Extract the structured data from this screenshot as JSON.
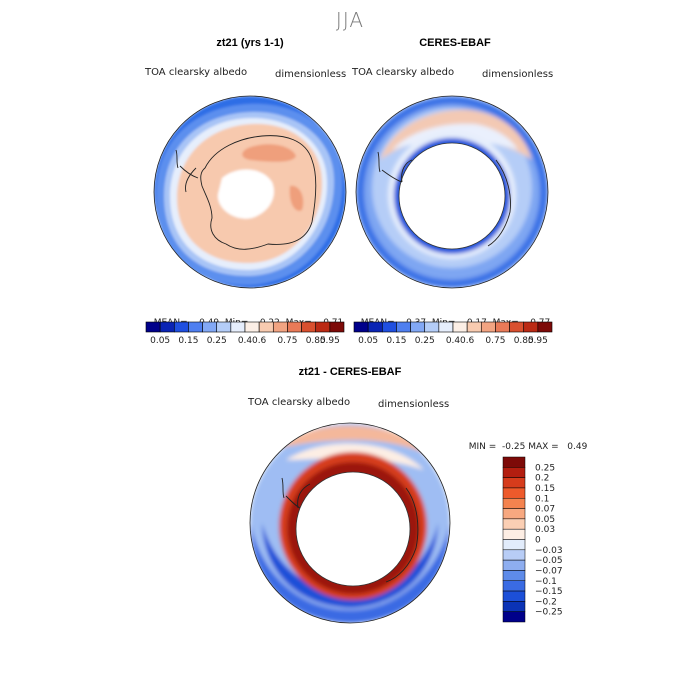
{
  "figure": {
    "season": "JJA"
  },
  "panels": [
    {
      "title": "zt21 (yrs 1-1)",
      "variable": "TOA clearsky albedo",
      "units": "dimensionless",
      "stats": {
        "mean_label": "MEAN=",
        "mean": "0.49",
        "min_label": "Min=",
        "min": "0.22",
        "max_label": "Max=",
        "max": "0.71"
      }
    },
    {
      "title": "CERES-EBAF",
      "variable": "TOA clearsky albedo",
      "units": "dimensionless",
      "stats": {
        "mean_label": "MEAN=",
        "mean": "0.37",
        "min_label": "Min=",
        "min": "0.17",
        "max_label": "Max=",
        "max": "0.77"
      }
    },
    {
      "title": "zt21 - CERES-EBAF",
      "variable": "TOA clearsky albedo",
      "units": "dimensionless",
      "stats": {
        "min_label": "MIN =",
        "min": "-0.25",
        "max_label": "MAX =",
        "max": "0.49"
      }
    }
  ],
  "colorbar_abs": {
    "colors": [
      "#00008a",
      "#0a24b4",
      "#1f4fe0",
      "#4f7ff0",
      "#82a8f5",
      "#b4cdf8",
      "#e6eefc",
      "#fcefe6",
      "#f8cbb0",
      "#f2a482",
      "#e97a58",
      "#d9502f",
      "#bb2a14",
      "#7d0a08"
    ],
    "labels": [
      "0.05",
      "0.15",
      "0.25",
      "0.4",
      "0.6",
      "0.75",
      "0.85",
      "0.95"
    ]
  },
  "colorbar_diff": {
    "colors": [
      "#7d0a08",
      "#b31e10",
      "#d63c1c",
      "#ee5a2b",
      "#f4834f",
      "#f7a880",
      "#fbcfb4",
      "#fdeee4",
      "#e2ecfb",
      "#b8cdf6",
      "#8eaef0",
      "#5e8be9",
      "#3a6be3",
      "#1c4fd8",
      "#0b33b6",
      "#00008a"
    ],
    "labels": [
      "0.25",
      "0.2",
      "0.15",
      "0.1",
      "0.07",
      "0.05",
      "0.03",
      "0",
      "−0.03",
      "−0.05",
      "−0.07",
      "−0.1",
      "−0.15",
      "−0.2",
      "−0.25"
    ]
  }
}
